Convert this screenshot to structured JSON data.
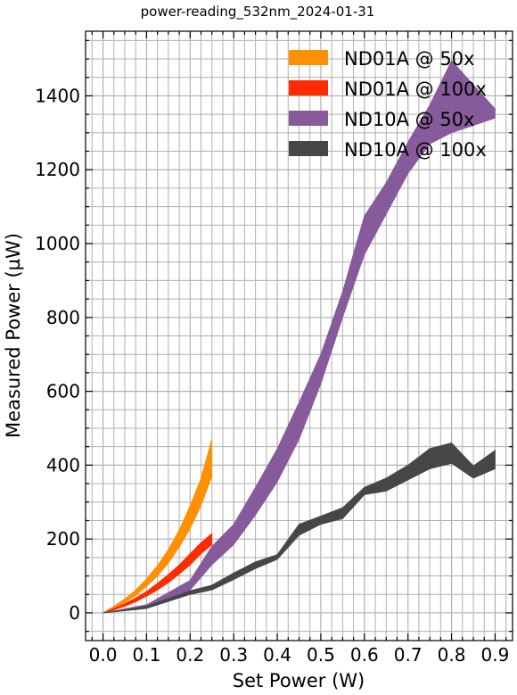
{
  "chart_data": {
    "type": "area",
    "title": "power-reading_532nm_2024-01-31",
    "xlabel": "Set Power (W)",
    "ylabel": "Measured Power (µW)",
    "xlim": [
      -0.04,
      0.94
    ],
    "ylim": [
      -75,
      1575
    ],
    "x_ticks": [
      0.0,
      0.1,
      0.2,
      0.3,
      0.4,
      0.5,
      0.6,
      0.7,
      0.8,
      0.9
    ],
    "x_tick_labels": [
      "0.0",
      "0.1",
      "0.2",
      "0.3",
      "0.4",
      "0.5",
      "0.6",
      "0.7",
      "0.8",
      "0.9"
    ],
    "y_ticks": [
      0,
      200,
      400,
      600,
      800,
      1000,
      1200,
      1400
    ],
    "y_tick_labels": [
      "0",
      "200",
      "400",
      "600",
      "800",
      "1000",
      "1200",
      "1400"
    ],
    "grid": true,
    "legend_position": "top-right",
    "series": [
      {
        "name": "ND01A @ 50x",
        "color": "#ff9000",
        "x": [
          0.0,
          0.025,
          0.05,
          0.075,
          0.1,
          0.125,
          0.15,
          0.175,
          0.2,
          0.225,
          0.25
        ],
        "lower": [
          0,
          12,
          28,
          47,
          72,
          100,
          135,
          178,
          228,
          290,
          370
        ],
        "upper": [
          0,
          18,
          38,
          62,
          92,
          128,
          172,
          225,
          290,
          365,
          470
        ]
      },
      {
        "name": "ND01A @ 100x",
        "color": "#ff2a00",
        "x": [
          0.0,
          0.025,
          0.05,
          0.075,
          0.1,
          0.125,
          0.15,
          0.175,
          0.2,
          0.225,
          0.25
        ],
        "lower": [
          0,
          8,
          18,
          30,
          45,
          62,
          82,
          105,
          130,
          160,
          185
        ],
        "upper": [
          0,
          12,
          25,
          40,
          58,
          80,
          104,
          130,
          160,
          190,
          215
        ]
      },
      {
        "name": "ND10A @ 50x",
        "color": "#875a9c",
        "x": [
          0.0,
          0.1,
          0.2,
          0.25,
          0.3,
          0.35,
          0.4,
          0.45,
          0.5,
          0.55,
          0.6,
          0.65,
          0.7,
          0.75,
          0.8,
          0.85,
          0.9
        ],
        "lower": [
          0,
          12,
          62,
          130,
          185,
          265,
          355,
          470,
          620,
          800,
          970,
          1080,
          1190,
          1270,
          1300,
          1320,
          1340
        ],
        "upper": [
          0,
          22,
          88,
          180,
          240,
          340,
          445,
          570,
          700,
          870,
          1075,
          1165,
          1275,
          1375,
          1495,
          1430,
          1365
        ]
      },
      {
        "name": "ND10A @ 100x",
        "color": "#464646",
        "x": [
          0.0,
          0.1,
          0.2,
          0.25,
          0.3,
          0.35,
          0.4,
          0.45,
          0.5,
          0.55,
          0.6,
          0.65,
          0.7,
          0.75,
          0.8,
          0.85,
          0.9
        ],
        "lower": [
          0,
          12,
          50,
          62,
          90,
          120,
          145,
          210,
          240,
          255,
          320,
          330,
          360,
          390,
          405,
          365,
          390
        ],
        "upper": [
          0,
          18,
          60,
          75,
          108,
          138,
          158,
          240,
          262,
          285,
          340,
          365,
          400,
          445,
          460,
          398,
          440
        ]
      }
    ]
  }
}
